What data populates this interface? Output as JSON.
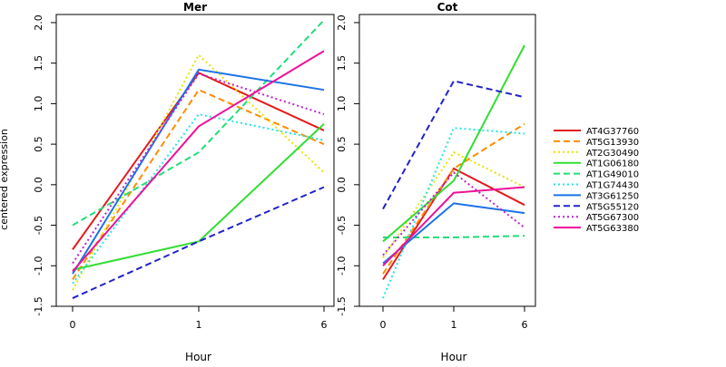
{
  "chart_data": {
    "type": "line",
    "ylabel": "centered expression",
    "xlabel": "Hour",
    "x_categories": [
      "0",
      "1",
      "6"
    ],
    "ylim": [
      -1.5,
      2.1
    ],
    "yticks": [
      -1.5,
      -1.0,
      -0.5,
      0.0,
      0.5,
      1.0,
      1.5,
      2.0
    ],
    "ytick_labels": [
      "-1.5",
      "-1.0",
      "-0.5",
      "0.0",
      "0.5",
      "1.0",
      "1.5",
      "2.0"
    ],
    "legend_position": "right",
    "panels": [
      {
        "title": "Mer",
        "series": [
          {
            "name": "AT4G37760",
            "color": "#e41a1c",
            "dash": "solid",
            "values": [
              -0.8,
              1.38,
              0.67
            ]
          },
          {
            "name": "AT5G13930",
            "color": "#ff8c00",
            "dash": "dashed",
            "values": [
              -1.17,
              1.17,
              0.5
            ]
          },
          {
            "name": "AT2G30490",
            "color": "#e5e500",
            "dash": "dotted",
            "values": [
              -1.3,
              1.6,
              0.15
            ]
          },
          {
            "name": "AT1G06180",
            "color": "#33dd33",
            "dash": "solid",
            "values": [
              -1.05,
              -0.7,
              0.75
            ]
          },
          {
            "name": "AT1G49010",
            "color": "#22dd77",
            "dash": "dashed",
            "values": [
              -0.5,
              0.4,
              2.03
            ]
          },
          {
            "name": "AT1G74430",
            "color": "#22e5e5",
            "dash": "dotted",
            "values": [
              -1.22,
              0.87,
              0.55
            ]
          },
          {
            "name": "AT3G61250",
            "color": "#1a73e8",
            "dash": "solid",
            "values": [
              -1.1,
              1.42,
              1.17
            ]
          },
          {
            "name": "AT5G55120",
            "color": "#2222cc",
            "dash": "dashed",
            "values": [
              -1.4,
              -0.7,
              -0.03
            ]
          },
          {
            "name": "AT5G67300",
            "color": "#bb22cc",
            "dash": "dotted",
            "values": [
              -0.97,
              1.37,
              0.87
            ]
          },
          {
            "name": "AT5G63380",
            "color": "#ee1199",
            "dash": "solid",
            "values": [
              -1.07,
              0.72,
              1.65
            ]
          }
        ]
      },
      {
        "title": "Cot",
        "series": [
          {
            "name": "AT4G37760",
            "color": "#e41a1c",
            "dash": "solid",
            "values": [
              -1.17,
              0.2,
              -0.25
            ]
          },
          {
            "name": "AT5G13930",
            "color": "#ff8c00",
            "dash": "dashed",
            "values": [
              -1.1,
              0.2,
              0.75
            ]
          },
          {
            "name": "AT2G30490",
            "color": "#e5e500",
            "dash": "dotted",
            "values": [
              -0.9,
              0.4,
              -0.03
            ]
          },
          {
            "name": "AT1G06180",
            "color": "#33dd33",
            "dash": "solid",
            "values": [
              -0.7,
              0.05,
              1.72
            ]
          },
          {
            "name": "AT1G49010",
            "color": "#22dd77",
            "dash": "dashed",
            "values": [
              -0.65,
              -0.65,
              -0.63
            ]
          },
          {
            "name": "AT1G74430",
            "color": "#22e5e5",
            "dash": "dotted",
            "values": [
              -1.4,
              0.7,
              0.63
            ]
          },
          {
            "name": "AT3G61250",
            "color": "#1a73e8",
            "dash": "solid",
            "values": [
              -0.97,
              -0.23,
              -0.35
            ]
          },
          {
            "name": "AT5G55120",
            "color": "#2222cc",
            "dash": "dashed",
            "values": [
              -0.3,
              1.28,
              1.08
            ]
          },
          {
            "name": "AT5G67300",
            "color": "#bb22cc",
            "dash": "dotted",
            "values": [
              -0.87,
              0.15,
              -0.53
            ]
          },
          {
            "name": "AT5G63380",
            "color": "#ee1199",
            "dash": "solid",
            "values": [
              -1.0,
              -0.1,
              -0.03
            ]
          }
        ]
      }
    ]
  }
}
